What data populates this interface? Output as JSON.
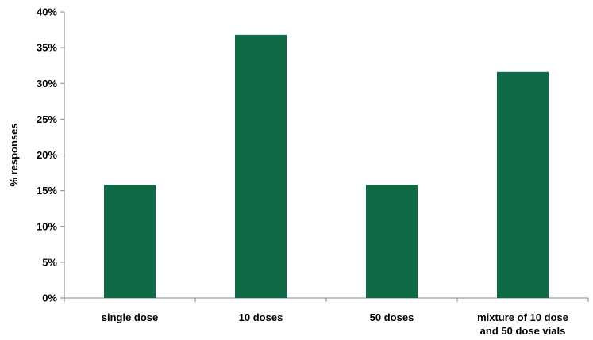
{
  "chart_data": {
    "type": "bar",
    "title": "",
    "xlabel": "",
    "ylabel": "% responses",
    "ylim": [
      0,
      40
    ],
    "yticks": [
      "0%",
      "5%",
      "10%",
      "15%",
      "20%",
      "25%",
      "30%",
      "35%",
      "40%"
    ],
    "categories": [
      [
        "single dose"
      ],
      [
        "10 doses"
      ],
      [
        "50 doses"
      ],
      [
        "mixture of 10 dose",
        "and 50 dose vials"
      ]
    ],
    "values": [
      15.8,
      36.8,
      15.8,
      31.6
    ],
    "bar_color": "#0e6b46",
    "grid": false,
    "legend": "none"
  }
}
